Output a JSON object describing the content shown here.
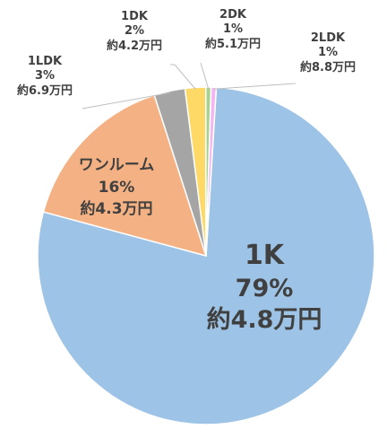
{
  "chart_data": {
    "type": "pie",
    "title": "",
    "slices": [
      {
        "name": "1K",
        "percent_label": "79%",
        "percent": 79,
        "rent": "約4.8万円",
        "color": "#9DC3E6"
      },
      {
        "name": "ワンルーム",
        "percent_label": "16%",
        "percent": 16,
        "rent": "約4.3万円",
        "color": "#F4B183"
      },
      {
        "name": "1LDK",
        "percent_label": "3%",
        "percent": 3,
        "rent": "約6.9万円",
        "color": "#A5A5A5"
      },
      {
        "name": "1DK",
        "percent_label": "2%",
        "percent": 2,
        "rent": "約4.2万円",
        "color": "#FFD966"
      },
      {
        "name": "2DK",
        "percent_label": "1%",
        "percent": 0.5,
        "rent": "約5.1万円",
        "color": "#A9D18E"
      },
      {
        "name": "2LDK",
        "percent_label": "1%",
        "percent": 0.5,
        "rent": "約8.8万円",
        "color": "#F4B6F0"
      }
    ]
  }
}
